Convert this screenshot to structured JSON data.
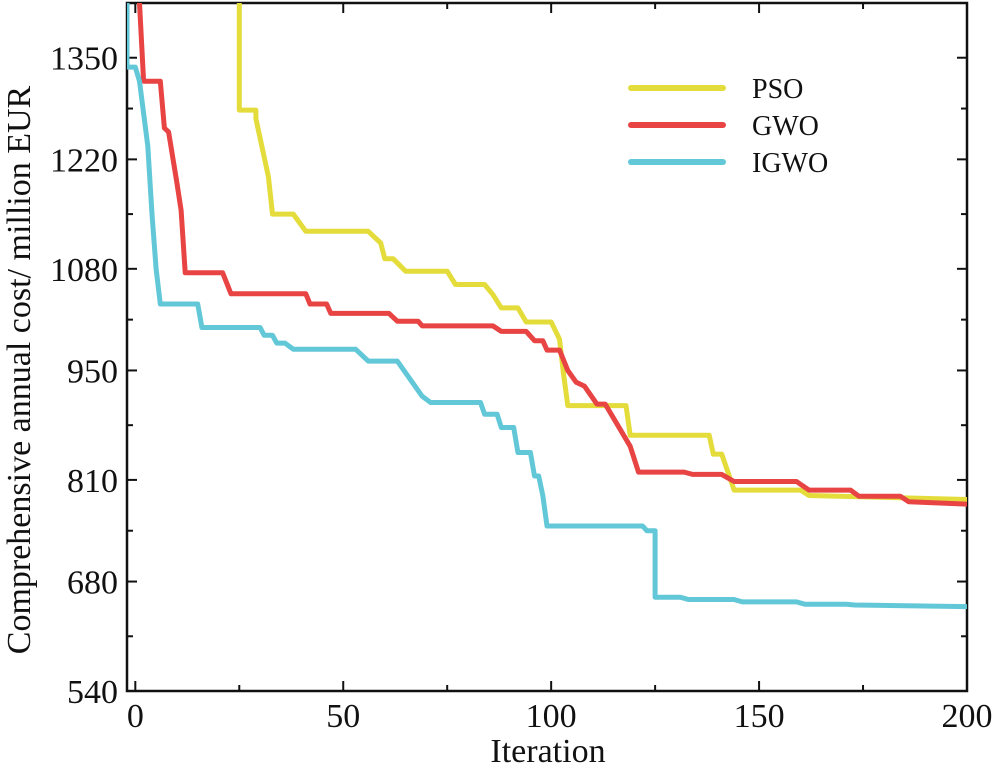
{
  "chart_data": {
    "type": "line",
    "title": "",
    "xlabel": "Iteration",
    "ylabel": "Comprehensive annual  cost/ million EUR",
    "xlim": [
      -2,
      200
    ],
    "ylim": [
      540,
      1420
    ],
    "x_ticks": [
      0,
      50,
      100,
      150,
      200
    ],
    "x_tick_labels": [
      "0",
      "50",
      "100",
      "150",
      "200"
    ],
    "y_ticks": [
      540,
      680,
      810,
      950,
      1080,
      1220,
      1350
    ],
    "y_tick_labels": [
      "540",
      "680",
      "810",
      "950",
      "1080",
      "1220",
      "1350"
    ],
    "grid": false,
    "legend_position": "top-right",
    "series": [
      {
        "name": "PSO",
        "color": "#e3dc3a",
        "points": [
          [
            25,
            1420
          ],
          [
            25,
            1283
          ],
          [
            29,
            1283
          ],
          [
            29,
            1272
          ],
          [
            32,
            1198
          ],
          [
            33,
            1150
          ],
          [
            38,
            1150
          ],
          [
            41,
            1128
          ],
          [
            56,
            1128
          ],
          [
            59,
            1113
          ],
          [
            60,
            1093
          ],
          [
            62,
            1093
          ],
          [
            65,
            1077
          ],
          [
            75,
            1077
          ],
          [
            77,
            1060
          ],
          [
            84,
            1060
          ],
          [
            86,
            1047
          ],
          [
            88,
            1030
          ],
          [
            92,
            1030
          ],
          [
            94,
            1012
          ],
          [
            100,
            1012
          ],
          [
            102,
            990
          ],
          [
            103,
            945
          ],
          [
            104,
            905
          ],
          [
            118,
            905
          ],
          [
            119,
            867
          ],
          [
            138,
            867
          ],
          [
            139,
            843
          ],
          [
            141,
            843
          ],
          [
            144,
            797
          ],
          [
            160,
            797
          ],
          [
            162,
            790
          ],
          [
            200,
            785
          ]
        ]
      },
      {
        "name": "GWO",
        "color": "#e84444",
        "points": [
          [
            1,
            1420
          ],
          [
            2,
            1320
          ],
          [
            6,
            1320
          ],
          [
            7,
            1260
          ],
          [
            8,
            1255
          ],
          [
            10,
            1190
          ],
          [
            11,
            1155
          ],
          [
            12,
            1075
          ],
          [
            21,
            1075
          ],
          [
            23,
            1048
          ],
          [
            41,
            1048
          ],
          [
            42,
            1035
          ],
          [
            46,
            1035
          ],
          [
            47,
            1023
          ],
          [
            61,
            1023
          ],
          [
            63,
            1013
          ],
          [
            68,
            1013
          ],
          [
            69,
            1007
          ],
          [
            86,
            1007
          ],
          [
            88,
            1000
          ],
          [
            94,
            1000
          ],
          [
            96,
            988
          ],
          [
            98,
            988
          ],
          [
            99,
            976
          ],
          [
            102,
            976
          ],
          [
            104,
            950
          ],
          [
            106,
            935
          ],
          [
            108,
            930
          ],
          [
            111,
            907
          ],
          [
            113,
            907
          ],
          [
            116,
            880
          ],
          [
            119,
            853
          ],
          [
            121,
            820
          ],
          [
            132,
            820
          ],
          [
            134,
            817
          ],
          [
            141,
            817
          ],
          [
            144,
            808
          ],
          [
            159,
            808
          ],
          [
            162,
            797
          ],
          [
            172,
            797
          ],
          [
            174,
            789
          ],
          [
            184,
            789
          ],
          [
            186,
            782
          ],
          [
            200,
            779
          ]
        ]
      },
      {
        "name": "IGWO",
        "color": "#62c8d8",
        "points": [
          [
            -2,
            1420
          ],
          [
            -2,
            1338
          ],
          [
            0,
            1338
          ],
          [
            1,
            1320
          ],
          [
            3,
            1237
          ],
          [
            4,
            1150
          ],
          [
            5,
            1080
          ],
          [
            6,
            1035
          ],
          [
            15,
            1035
          ],
          [
            16,
            1005
          ],
          [
            30,
            1005
          ],
          [
            31,
            995
          ],
          [
            33,
            995
          ],
          [
            34,
            985
          ],
          [
            36,
            985
          ],
          [
            38,
            977
          ],
          [
            53,
            977
          ],
          [
            56,
            962
          ],
          [
            63,
            962
          ],
          [
            65,
            947
          ],
          [
            69,
            917
          ],
          [
            71,
            909
          ],
          [
            83,
            909
          ],
          [
            84,
            894
          ],
          [
            87,
            894
          ],
          [
            88,
            877
          ],
          [
            91,
            877
          ],
          [
            92,
            845
          ],
          [
            95,
            845
          ],
          [
            96,
            815
          ],
          [
            97,
            815
          ],
          [
            98,
            790
          ],
          [
            99,
            751
          ],
          [
            122,
            751
          ],
          [
            123,
            745
          ],
          [
            125,
            745
          ],
          [
            125,
            660
          ],
          [
            131,
            660
          ],
          [
            133,
            657
          ],
          [
            144,
            657
          ],
          [
            146,
            654
          ],
          [
            159,
            654
          ],
          [
            161,
            651
          ],
          [
            171,
            651
          ],
          [
            173,
            650
          ],
          [
            200,
            648
          ]
        ]
      }
    ]
  }
}
